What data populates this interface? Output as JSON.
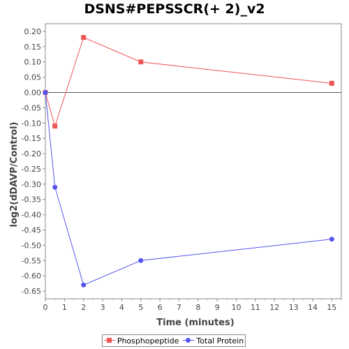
{
  "chart_data": {
    "type": "line",
    "title": "DSNS#PEPSSCR(+ 2)_v2",
    "xlabel": "Time (minutes)",
    "ylabel": "log2(dDAVP/Control)",
    "xlim": [
      0,
      15.5
    ],
    "ylim": [
      -0.675,
      0.225
    ],
    "x_ticks": [
      "0",
      "1",
      "2",
      "3",
      "4",
      "5",
      "6",
      "7",
      "8",
      "9",
      "10",
      "11",
      "12",
      "13",
      "14",
      "15"
    ],
    "y_ticks": [
      "0.20",
      "0.15",
      "0.10",
      "0.05",
      "0.00",
      "-0.05",
      "-0.10",
      "-0.15",
      "-0.20",
      "-0.25",
      "-0.30",
      "-0.35",
      "-0.40",
      "-0.45",
      "-0.50",
      "-0.55",
      "-0.60",
      "-0.65"
    ],
    "grid": false,
    "legend_position": "bottom",
    "series": [
      {
        "name": "Phosphopeptide",
        "color": "#ee5555",
        "marker": "square",
        "points": [
          [
            0,
            0.0
          ],
          [
            0.5,
            -0.11
          ],
          [
            2,
            0.18
          ],
          [
            5,
            0.1
          ],
          [
            15,
            0.03
          ]
        ]
      },
      {
        "name": "Total Protein",
        "color": "#5555ee",
        "marker": "circle",
        "points": [
          [
            0,
            0.0
          ],
          [
            0.5,
            -0.31
          ],
          [
            2,
            -0.63
          ],
          [
            5,
            -0.55
          ],
          [
            15,
            -0.48
          ]
        ]
      }
    ]
  }
}
